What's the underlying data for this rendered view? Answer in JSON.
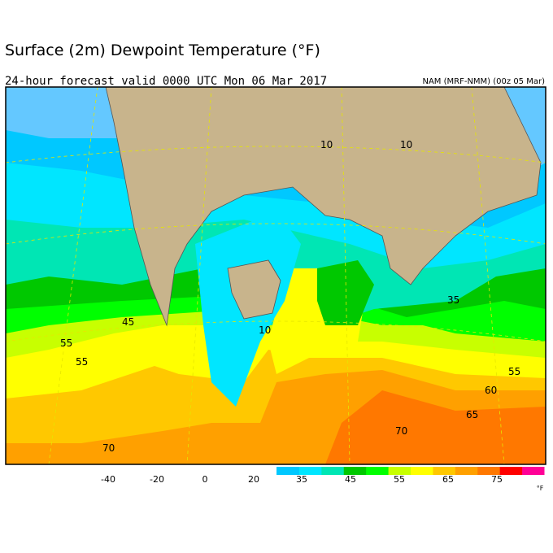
{
  "header": {
    "title": "Surface (2m) Dewpoint Temperature (°F)",
    "subtitle": "24-hour forecast valid 0000 UTC Mon 06 Mar 2017",
    "model": "NAM (MRF-NMM) (00z 05 Mar)"
  },
  "map": {
    "contour_labels": [
      "10",
      "10",
      "45",
      "55",
      "55",
      "10",
      "70",
      "35",
      "55",
      "60",
      "65",
      "70"
    ]
  },
  "colorbar": {
    "labels": [
      "-40",
      "-20",
      "0",
      "20",
      "35",
      "45",
      "55",
      "65",
      "75"
    ],
    "colors": [
      "#00c8ff",
      "#00e6ff",
      "#00e6b4",
      "#00c800",
      "#00ff00",
      "#c8ff00",
      "#ffff00",
      "#ffc800",
      "#ffa000",
      "#ff7800",
      "#ff0000",
      "#ff0096"
    ],
    "unit": "°F"
  }
}
